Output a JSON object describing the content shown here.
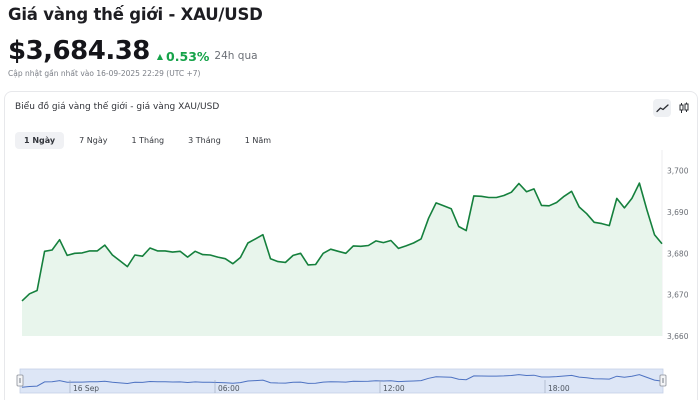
{
  "header": {
    "title": "Giá vàng thế giới - XAU/USD",
    "price": "$3,684.38",
    "change_pct": "0.53%",
    "change_period": "24h qua",
    "updated": "Cập nhật gần nhất vào 16-09-2025 22:29 (UTC +7)",
    "up_color": "#16a34a"
  },
  "card": {
    "title": "Biểu đồ giá vàng thế giới - giá vàng XAU/USD",
    "chart_type_icons": [
      "line-chart-icon",
      "candlestick-icon"
    ]
  },
  "tabs": [
    {
      "label": "1 Ngày",
      "active": true
    },
    {
      "label": "7 Ngày",
      "active": false
    },
    {
      "label": "1 Tháng",
      "active": false
    },
    {
      "label": "3 Tháng",
      "active": false
    },
    {
      "label": "1 Năm",
      "active": false
    }
  ],
  "chart_data": {
    "type": "area",
    "title": "",
    "xlabel": "",
    "ylabel": "",
    "ylim": [
      3660,
      3705
    ],
    "yticks": [
      "3,660",
      "3,670",
      "3,680",
      "3,690",
      "3,700"
    ],
    "line_color": "#15803d",
    "fill_color": "#e8f5ec",
    "series": [
      {
        "values": [
          3668.5,
          3670.2,
          3671.0,
          3680.5,
          3680.8,
          3683.3,
          3679.5,
          3680.0,
          3680.1,
          3680.6,
          3680.6,
          3682.0,
          3679.6,
          3678.2,
          3676.8,
          3679.6,
          3679.3,
          3681.3,
          3680.6,
          3680.6,
          3680.3,
          3680.5,
          3679.1,
          3680.5,
          3679.7,
          3679.6,
          3679.1,
          3678.7,
          3677.5,
          3679.0,
          3682.5,
          3683.5,
          3684.5,
          3678.7,
          3678.0,
          3677.8,
          3679.5,
          3680.0,
          3677.2,
          3677.3,
          3680.0,
          3681.0,
          3680.5,
          3680.0,
          3681.8,
          3681.7,
          3681.9,
          3683.0,
          3682.6,
          3683.1,
          3681.2,
          3681.8,
          3682.5,
          3683.5,
          3688.5,
          3692.2,
          3691.5,
          3690.8,
          3686.5,
          3685.5,
          3693.9,
          3693.8,
          3693.5,
          3693.5,
          3694.0,
          3694.8,
          3696.9,
          3694.9,
          3695.6,
          3691.6,
          3691.5,
          3692.3,
          3693.8,
          3695.0,
          3691.2,
          3689.6,
          3687.5,
          3687.2,
          3686.7,
          3693.3,
          3691.0,
          3693.3,
          3697.0,
          3690.5,
          3684.5,
          3682.3
        ],
        "name": ""
      }
    ],
    "x_ticks": [
      "16 Sep",
      "06:00",
      "12:00",
      "18:00"
    ],
    "grid": false
  }
}
